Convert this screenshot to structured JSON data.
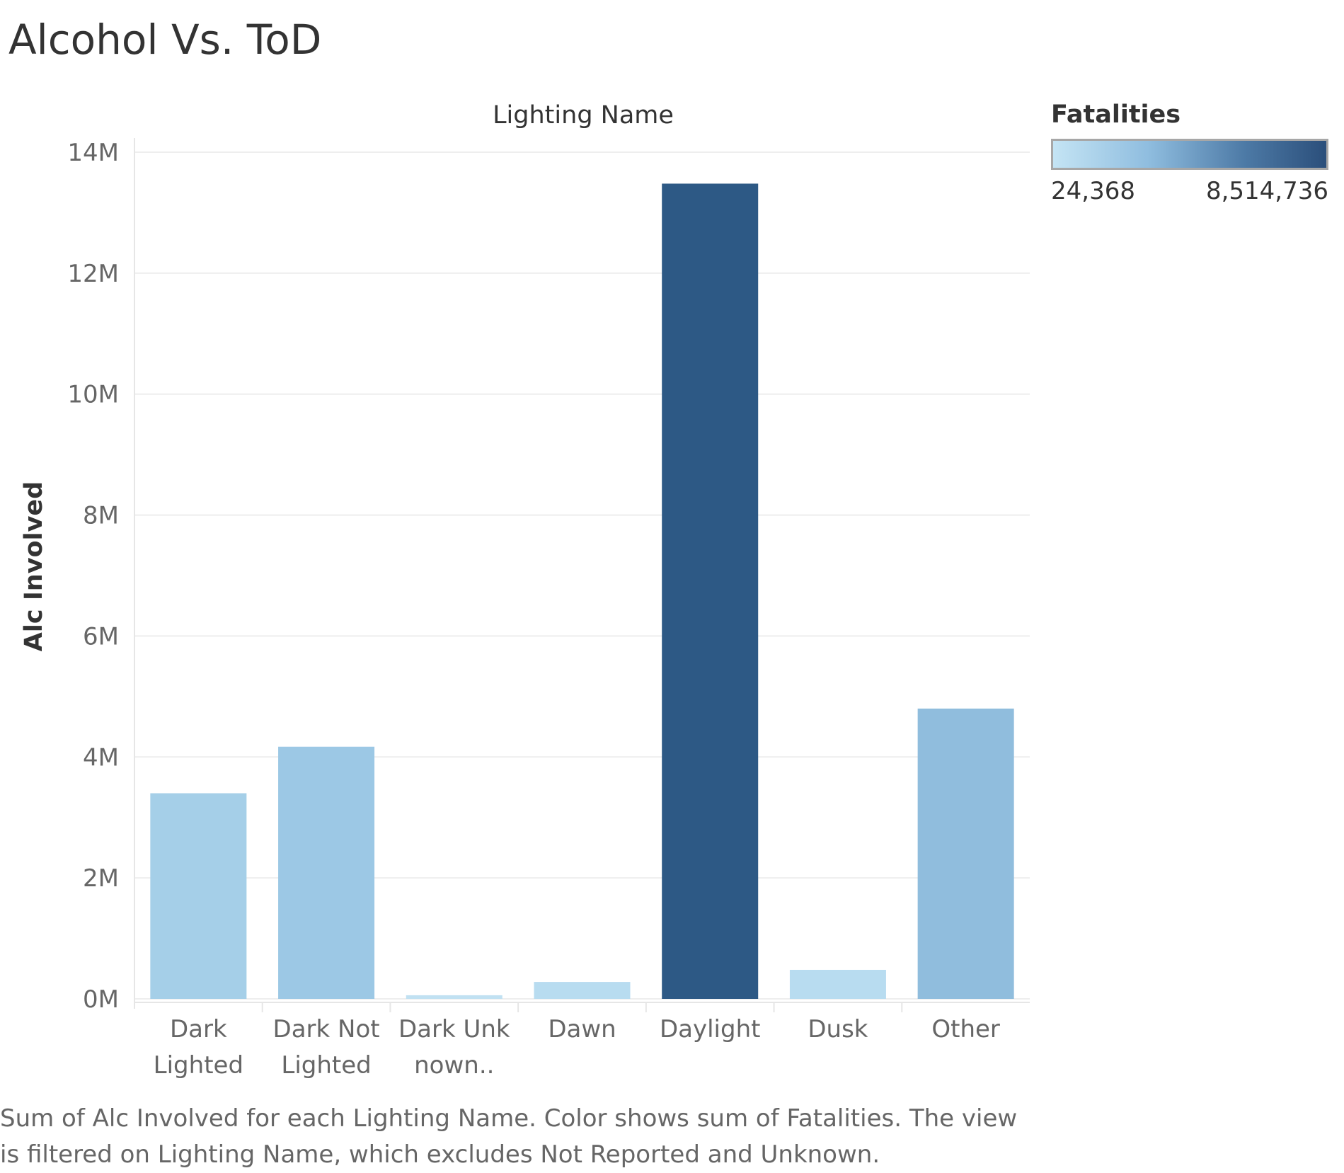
{
  "title": "Alcohol Vs. ToD",
  "chart_data": {
    "type": "bar",
    "x_header": "Lighting Name",
    "ylabel": "Alc Involved",
    "ylim": [
      0,
      14000000
    ],
    "yticks": [
      "0M",
      "2M",
      "4M",
      "6M",
      "8M",
      "10M",
      "12M",
      "14M"
    ],
    "grid": true,
    "categories": [
      "Dark Lighted",
      "Dark Not Lighted",
      "Dark Unknown..",
      "Dawn",
      "Daylight",
      "Dusk",
      "Other"
    ],
    "category_labels": [
      [
        "Dark",
        "Lighted"
      ],
      [
        "Dark Not",
        "Lighted"
      ],
      [
        "Dark Unk",
        "nown.."
      ],
      [
        "Dawn"
      ],
      [
        "Daylight"
      ],
      [
        "Dusk"
      ],
      [
        "Other"
      ]
    ],
    "values": [
      3400000,
      4170000,
      60000,
      280000,
      13480000,
      480000,
      4800000
    ],
    "colors": [
      "#a5cfe8",
      "#9cc8e5",
      "#c1e1f2",
      "#b8dcf0",
      "#2d5985",
      "#b8dcf0",
      "#90bddd"
    ],
    "color_legend": {
      "title": "Fatalities",
      "min_label": "24,368",
      "max_label": "8,514,736",
      "min_color": "#c4e4f4",
      "max_color": "#2b4f7b"
    }
  },
  "caption": "Sum of Alc Involved for each Lighting Name.  Color shows sum of Fatalities. The view is filtered on Lighting Name, which excludes Not Reported and Unknown."
}
